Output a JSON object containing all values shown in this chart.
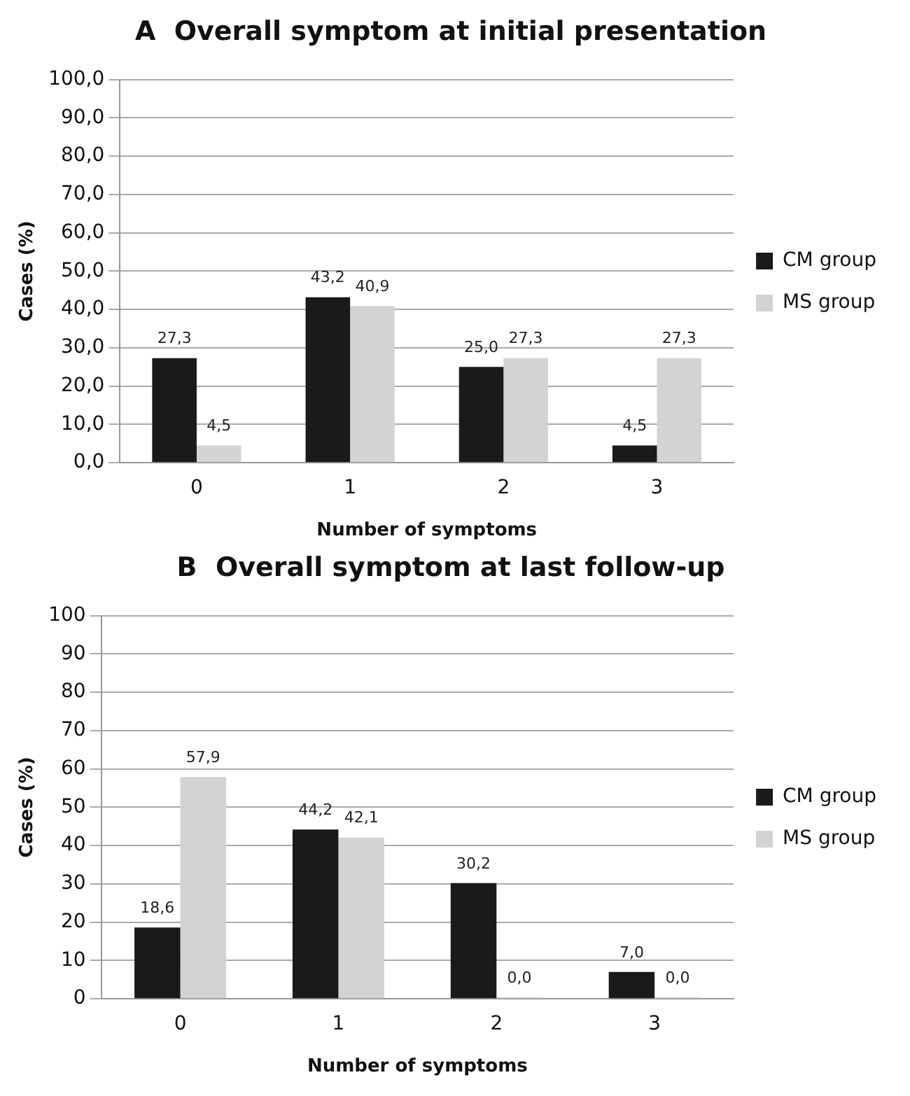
{
  "chart_data": [
    {
      "type": "bar",
      "title": "A  Overall symptom at initial presentation",
      "xlabel": "Number of symptoms",
      "ylabel": "Cases (%)",
      "categories": [
        "0",
        "1",
        "2",
        "3"
      ],
      "series": [
        {
          "name": "CM group",
          "color": "#1a1a1a",
          "values": [
            27.3,
            43.2,
            25.0,
            4.5
          ],
          "value_labels": [
            "27,3",
            "43,2",
            "25,0",
            "4,5"
          ]
        },
        {
          "name": "MS group",
          "color": "#d3d3d3",
          "values": [
            4.5,
            40.9,
            27.3,
            27.3
          ],
          "value_labels": [
            "4,5",
            "40,9",
            "27,3",
            "27,3"
          ]
        }
      ],
      "ylim": [
        0,
        100
      ],
      "yticks": [
        {
          "value": 0,
          "label": "0,0"
        },
        {
          "value": 10,
          "label": "10,0"
        },
        {
          "value": 20,
          "label": "20,0"
        },
        {
          "value": 30,
          "label": "30,0"
        },
        {
          "value": 40,
          "label": "40,0"
        },
        {
          "value": 50,
          "label": "50,0"
        },
        {
          "value": 60,
          "label": "60,0"
        },
        {
          "value": 70,
          "label": "70,0"
        },
        {
          "value": 80,
          "label": "80,0"
        },
        {
          "value": 90,
          "label": "90,0"
        },
        {
          "value": 100,
          "label": "100,0"
        }
      ],
      "grid": "y",
      "legend": "right"
    },
    {
      "type": "bar",
      "title": "B  Overall symptom at last follow-up",
      "xlabel": "Number of symptoms",
      "ylabel": "Cases (%)",
      "categories": [
        "0",
        "1",
        "2",
        "3"
      ],
      "series": [
        {
          "name": "CM group",
          "color": "#1a1a1a",
          "values": [
            18.6,
            44.2,
            30.2,
            7.0
          ],
          "value_labels": [
            "18,6",
            "44,2",
            "30,2",
            "7,0"
          ]
        },
        {
          "name": "MS group",
          "color": "#d3d3d3",
          "values": [
            57.9,
            42.1,
            0.0,
            0.0
          ],
          "value_labels": [
            "57,9",
            "42,1",
            "0,0",
            "0,0"
          ]
        }
      ],
      "ylim": [
        0,
        100
      ],
      "yticks": [
        0,
        10,
        20,
        30,
        40,
        50,
        60,
        70,
        80,
        90,
        100
      ],
      "grid": "y",
      "legend": "right"
    }
  ]
}
